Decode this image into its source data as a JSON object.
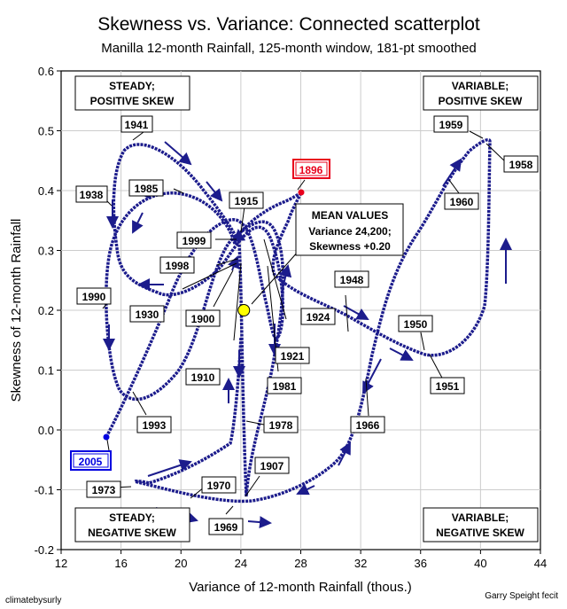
{
  "chart_data": {
    "type": "scatter",
    "title": "Skewness vs. Variance: Connected scatterplot",
    "subtitle": "Manilla 12-month Rainfall, 125-month window, 181-pt smoothed",
    "xlabel": "Variance of 12-month Rainfall (thous.)",
    "ylabel": "Skewness of 12-month Rainfall",
    "xlim": [
      12,
      44
    ],
    "ylim": [
      -0.2,
      0.6
    ],
    "xticks": [
      "12",
      "16",
      "20",
      "24",
      "28",
      "32",
      "36",
      "40",
      "44"
    ],
    "yticks": [
      "-0.2",
      "-0.1",
      "0.0",
      "0.1",
      "0.2",
      "0.3",
      "0.4",
      "0.5",
      "0.6"
    ],
    "series": [
      {
        "name": "Smoothed trajectory 1896-2005",
        "color": "#1c1c8c",
        "points": [
          {
            "year": "1896",
            "x": 27.4,
            "y": 0.4
          },
          {
            "year": "1900",
            "x": 23.0,
            "y": 0.265
          },
          {
            "year": "1915",
            "x": 22.6,
            "y": 0.305
          },
          {
            "year": "1921",
            "x": 26.4,
            "y": 0.155
          },
          {
            "year": "1924",
            "x": 28.2,
            "y": 0.24
          },
          {
            "year": "1941",
            "x": 16.7,
            "y": 0.472
          },
          {
            "year": "1948",
            "x": 30.0,
            "y": 0.21
          },
          {
            "year": "1950",
            "x": 33.0,
            "y": 0.14
          },
          {
            "year": "1951",
            "x": 36.8,
            "y": 0.118
          },
          {
            "year": "1958",
            "x": 40.5,
            "y": 0.48
          },
          {
            "year": "1959",
            "x": 40.3,
            "y": 0.482
          },
          {
            "year": "1960",
            "x": 37.8,
            "y": 0.4
          },
          {
            "year": "1966",
            "x": 33.2,
            "y": 0.09
          },
          {
            "year": "1969",
            "x": 23.5,
            "y": -0.122
          },
          {
            "year": "1970",
            "x": 20.0,
            "y": -0.108
          },
          {
            "year": "1973",
            "x": 16.6,
            "y": -0.093
          },
          {
            "year": "1978",
            "x": 23.0,
            "y": 0.04
          },
          {
            "year": "1981",
            "x": 23.4,
            "y": 0.24
          },
          {
            "year": "1985",
            "x": 20.0,
            "y": 0.39
          },
          {
            "year": "1990",
            "x": 15.8,
            "y": 0.225
          },
          {
            "year": "1993",
            "x": 16.6,
            "y": 0.04
          },
          {
            "year": "1998",
            "x": 22.8,
            "y": 0.27
          },
          {
            "year": "1999",
            "x": 23.2,
            "y": 0.28
          },
          {
            "year": "2005",
            "x": 14.5,
            "y": -0.01
          }
        ]
      }
    ],
    "mean_point": {
      "x": 24.2,
      "y": 0.2,
      "color": "#ffff00"
    },
    "annotations": {
      "mean_title": "MEAN VALUES",
      "mean_variance": "Variance 24,200;",
      "mean_skewness": "Skewness +0.20",
      "quad_tl_1": "STEADY;",
      "quad_tl_2": "POSITIVE SKEW",
      "quad_tr_1": "VARIABLE;",
      "quad_tr_2": "POSITIVE SKEW",
      "quad_bl_1": "STEADY;",
      "quad_bl_2": "NEGATIVE SKEW",
      "quad_br_1": "VARIABLE;",
      "quad_br_2": "NEGATIVE SKEW"
    },
    "credit_left": "climatebysurly",
    "credit_right": "Garry Speight fecit",
    "colors": {
      "line": "#1c1c8c",
      "start": "#e8001c",
      "end": "#0000e0",
      "mean": "#ffff00"
    }
  }
}
